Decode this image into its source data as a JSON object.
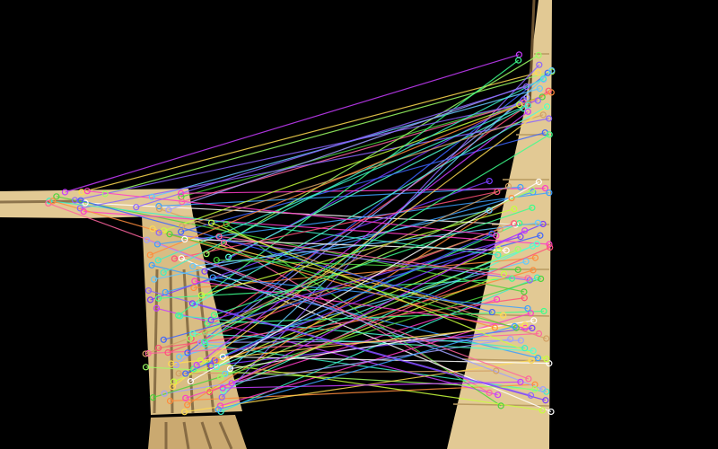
{
  "colors": {
    "background": "#000000",
    "board_light": "#e2c994",
    "board_dark": "#b89a62",
    "board_line": "#6b5230"
  },
  "match_colors": [
    "#4cd43c",
    "#7a3cff",
    "#3ca0ff",
    "#ff3cc8",
    "#3cf0c8",
    "#c8ff3c",
    "#ff8c3c",
    "#ffffff",
    "#8c64ff",
    "#3cff8c",
    "#ff5078",
    "#a0a0ff",
    "#64c8ff",
    "#d2a064",
    "#9cff64",
    "#c83cff",
    "#50ffd2",
    "#ffdc50",
    "#3c64ff",
    "#ff64a0"
  ],
  "match_count": 110
}
